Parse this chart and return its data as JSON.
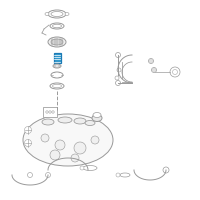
{
  "bg_color": "#ffffff",
  "line_color": "#999999",
  "highlight_color": "#3399cc",
  "fig_width": 2.0,
  "fig_height": 2.0,
  "dpi": 100
}
